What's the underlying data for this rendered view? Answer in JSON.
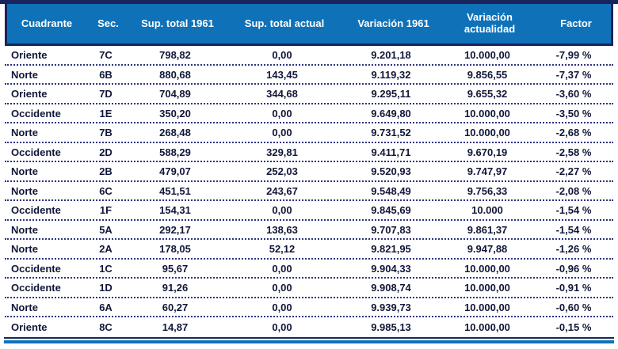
{
  "table": {
    "columns": [
      {
        "id": "cuadrante",
        "label": "Cuadrante",
        "align": "left"
      },
      {
        "id": "sec",
        "label": "Sec.",
        "align": "center"
      },
      {
        "id": "sup-total-1961",
        "label": "Sup. total 1961",
        "align": "center"
      },
      {
        "id": "sup-total-actual",
        "label": "Sup. total actual",
        "align": "center"
      },
      {
        "id": "variacion-1961",
        "label": "Variación 1961",
        "align": "center"
      },
      {
        "id": "variacion-actualidad",
        "label": "Variación actualidad",
        "align": "center"
      },
      {
        "id": "factor",
        "label": "Factor",
        "align": "center"
      }
    ],
    "rows": [
      [
        "Oriente",
        "7C",
        "798,82",
        "0,00",
        "9.201,18",
        "10.000,00",
        "-7,99 %"
      ],
      [
        "Norte",
        "6B",
        "880,68",
        "143,45",
        "9.119,32",
        "9.856,55",
        "-7,37 %"
      ],
      [
        "Oriente",
        "7D",
        "704,89",
        "344,68",
        "9.295,11",
        "9.655,32",
        "-3,60 %"
      ],
      [
        "Occidente",
        "1E",
        "350,20",
        "0,00",
        "9.649,80",
        "10.000,00",
        "-3,50 %"
      ],
      [
        "Norte",
        "7B",
        "268,48",
        "0,00",
        "9.731,52",
        "10.000,00",
        "-2,68 %"
      ],
      [
        "Occidente",
        "2D",
        "588,29",
        "329,81",
        "9.411,71",
        "9.670,19",
        "-2,58 %"
      ],
      [
        "Norte",
        "2B",
        "479,07",
        "252,03",
        "9.520,93",
        "9.747,97",
        "-2,27 %"
      ],
      [
        "Norte",
        "6C",
        "451,51",
        "243,67",
        "9.548,49",
        "9.756,33",
        "-2,08 %"
      ],
      [
        "Occidente",
        "1F",
        "154,31",
        "0,00",
        "9.845,69",
        "10.000",
        "-1,54 %"
      ],
      [
        "Norte",
        "5A",
        "292,17",
        "138,63",
        "9.707,83",
        "9.861,37",
        "-1,54 %"
      ],
      [
        "Norte",
        "2A",
        "178,05",
        "52,12",
        "9.821,95",
        "9.947,88",
        "-1,26 %"
      ],
      [
        "Occidente",
        "1C",
        "95,67",
        "0,00",
        "9.904,33",
        "10.000,00",
        "-0,96 %"
      ],
      [
        "Occidente",
        "1D",
        "91,26",
        "0,00",
        "9.908,74",
        "10.000,00",
        "-0,91 %"
      ],
      [
        "Norte",
        "6A",
        "60,27",
        "0,00",
        "9.939,73",
        "10.000,00",
        "-0,60 %"
      ],
      [
        "Oriente",
        "8C",
        "14,87",
        "0,00",
        "9.985,13",
        "10.000,00",
        "-0,15 %"
      ]
    ]
  },
  "colors": {
    "header_bg": "#0f72b8",
    "border_navy": "#19235c",
    "text": "#111738",
    "dotted_separator": "#2a3480",
    "accent_blue": "#0f72b8"
  }
}
